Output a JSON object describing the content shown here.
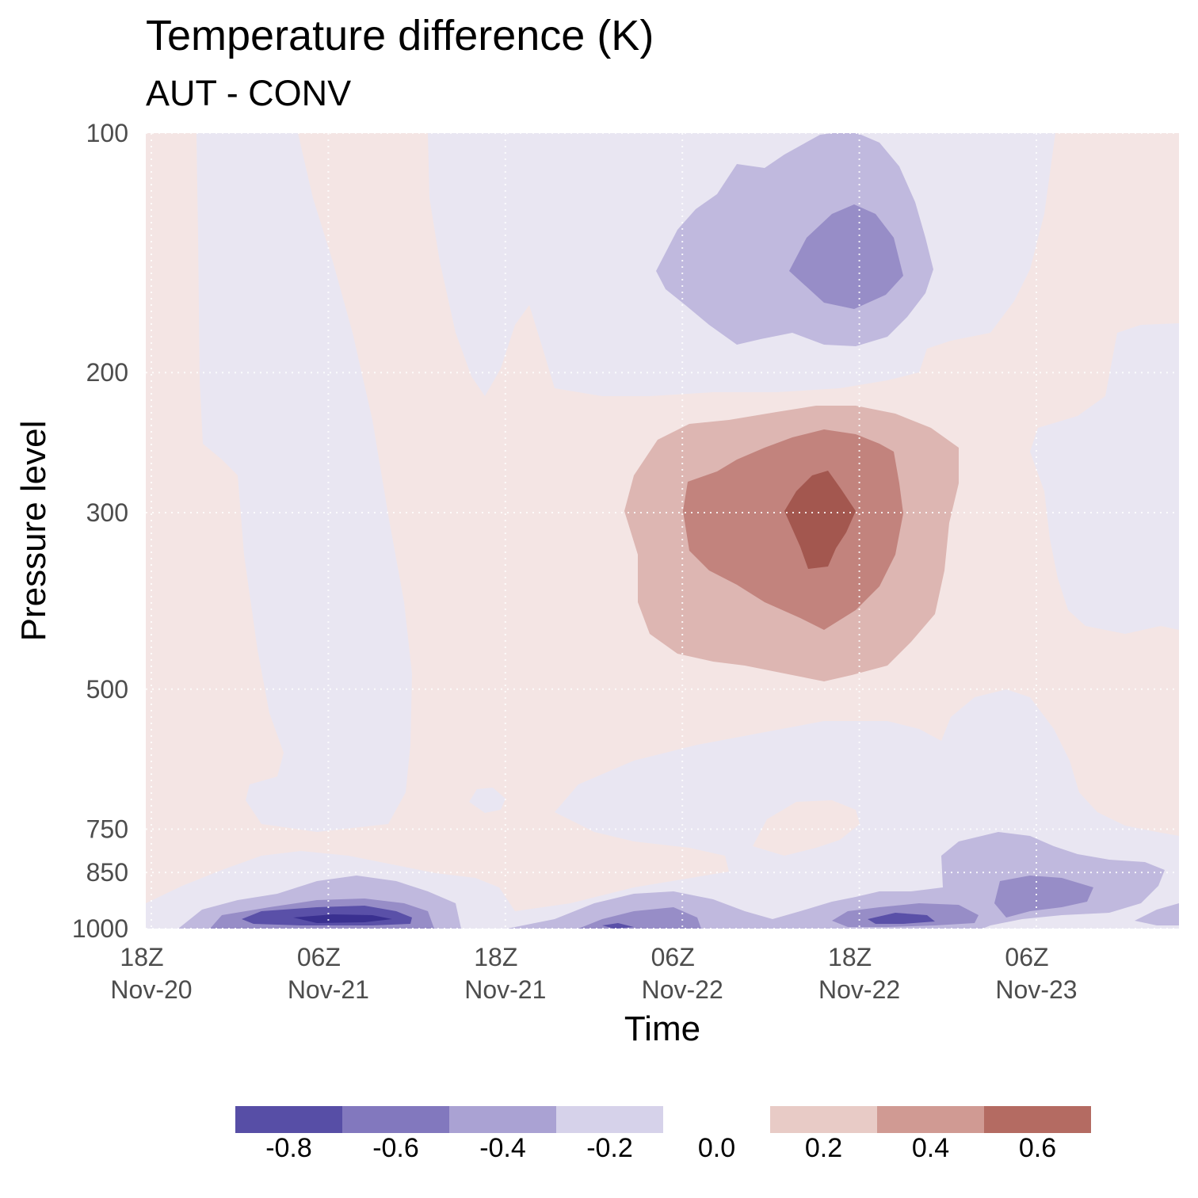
{
  "chart_data": {
    "type": "heatmap",
    "title": "Temperature difference (K)",
    "subtitle": "AUT - CONV",
    "xlabel": "Time",
    "ylabel": "Pressure level",
    "x_ticks": [
      {
        "hour": "18Z",
        "day": "Nov-20"
      },
      {
        "hour": "06Z",
        "day": "Nov-21"
      },
      {
        "hour": "18Z",
        "day": "Nov-21"
      },
      {
        "hour": "06Z",
        "day": "Nov-22"
      },
      {
        "hour": "18Z",
        "day": "Nov-22"
      },
      {
        "hour": "06Z",
        "day": "Nov-23"
      }
    ],
    "y_ticks": [
      "100",
      "200",
      "300",
      "500",
      "750",
      "850",
      "1000"
    ],
    "y_levels": [
      100,
      200,
      300,
      500,
      750,
      850,
      1000
    ],
    "y_scale": "log",
    "y_reversed": true,
    "color_levels": [
      {
        "label": "-0.8",
        "color": "#574ea6"
      },
      {
        "label": "-0.6",
        "color": "#8278be"
      },
      {
        "label": "-0.4",
        "color": "#aaa2d3"
      },
      {
        "label": "-0.2",
        "color": "#d6d2ea"
      },
      {
        "label": "0.0",
        "color": "#ffffff"
      },
      {
        "label": "0.2",
        "color": "#e8cbc6"
      },
      {
        "label": "0.4",
        "color": "#d09a93"
      },
      {
        "label": "0.6",
        "color": "#b46b62"
      }
    ],
    "plot_colors": {
      "neg_02": "#e9e6f2",
      "pos_00": "#f4e5e4",
      "neg_04": "#c0b9de",
      "neg_06": "#978dc7",
      "neg_08": "#5a50a8",
      "neg_10": "#3a3090",
      "pos_02": "#ddb6b2",
      "pos_04": "#c2837d",
      "pos_06": "#a3574f"
    },
    "features": [
      {
        "name": "upper negative anomaly",
        "time": "18Z Nov-22",
        "pressure": 140,
        "min_value": -0.5
      },
      {
        "name": "mid-troposphere warm anomaly",
        "time": "12Z-18Z Nov-22",
        "pressure": 300,
        "max_value": 0.6
      },
      {
        "name": "near-surface cold anomaly",
        "time": "06Z Nov-21",
        "pressure": 975,
        "min_value": -0.9
      },
      {
        "name": "low-level cold anomaly",
        "time": "06Z Nov-23",
        "pressure": 920,
        "min_value": -0.5
      }
    ],
    "grid": true
  }
}
